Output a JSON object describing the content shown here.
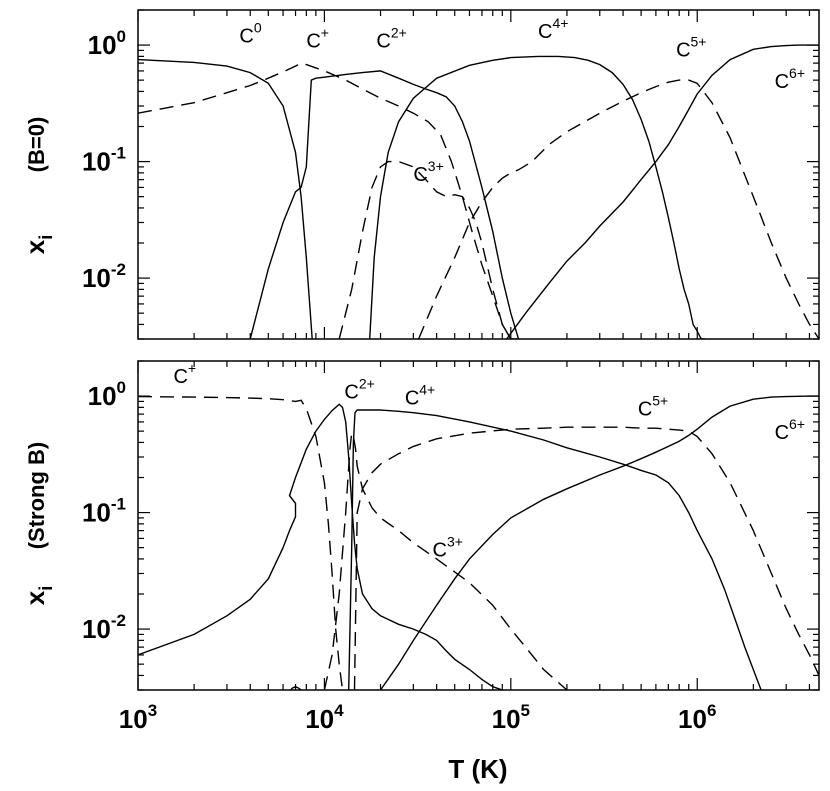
{
  "chart_data": [
    {
      "type": "line",
      "panel": "B=0",
      "ylabel": "x",
      "ylabel_sub": "i",
      "panel_label": "(B=0)",
      "xscale": "log",
      "yscale": "log",
      "xlim": [
        1000,
        4500000
      ],
      "ylim": [
        0.003,
        2
      ],
      "y_ticks": [
        {
          "base": "10",
          "exp": "0",
          "value": 1
        },
        {
          "base": "10",
          "exp": "-1",
          "value": 0.1
        },
        {
          "base": "10",
          "exp": "-2",
          "value": 0.01
        }
      ],
      "labels": [
        {
          "base": "C",
          "sup": "0",
          "x": 3500,
          "y": 1.05
        },
        {
          "base": "C",
          "sup": "+",
          "x": 8000,
          "y": 0.95
        },
        {
          "base": "C",
          "sup": "2+",
          "x": 19000,
          "y": 0.95
        },
        {
          "base": "C",
          "sup": "3+",
          "x": 30000,
          "y": 0.068
        },
        {
          "base": "C",
          "sup": "4+",
          "x": 140000,
          "y": 1.15
        },
        {
          "base": "C",
          "sup": "5+",
          "x": 770000,
          "y": 0.8
        },
        {
          "base": "C",
          "sup": "6+",
          "x": 2600000,
          "y": 0.43
        }
      ],
      "series": [
        {
          "label": "C0",
          "style": "solid",
          "x": [
            1000,
            2000,
            3000,
            4000,
            5000,
            6000,
            7000,
            7500,
            8000,
            8600
          ],
          "y": [
            0.75,
            0.71,
            0.66,
            0.58,
            0.47,
            0.3,
            0.12,
            0.05,
            0.015,
            0.003
          ]
        },
        {
          "label": "C+",
          "style": "dashed",
          "x": [
            1000,
            2000,
            3000,
            4000,
            5000,
            6000,
            7000,
            7500,
            8000,
            10000,
            13000,
            16000,
            20000,
            25000,
            30000,
            36000,
            42000,
            48000,
            55000,
            62000,
            70000,
            80000,
            90000,
            100000
          ],
          "y": [
            0.26,
            0.32,
            0.39,
            0.45,
            0.52,
            0.59,
            0.66,
            0.7,
            0.68,
            0.6,
            0.5,
            0.42,
            0.35,
            0.3,
            0.26,
            0.22,
            0.17,
            0.1,
            0.05,
            0.025,
            0.013,
            0.007,
            0.004,
            0.003
          ]
        },
        {
          "label": "C2+",
          "style": "solid",
          "x": [
            4000,
            5000,
            6000,
            7000,
            7500,
            8000,
            8500,
            9000,
            10000,
            11000,
            13000,
            16000,
            20000,
            25000,
            30000,
            35000,
            40000,
            45000,
            50000,
            55000,
            60000,
            70000,
            80000,
            90000,
            100000,
            110000
          ],
          "y": [
            0.003,
            0.012,
            0.03,
            0.055,
            0.06,
            0.09,
            0.5,
            0.52,
            0.53,
            0.54,
            0.56,
            0.58,
            0.6,
            0.52,
            0.46,
            0.42,
            0.39,
            0.36,
            0.3,
            0.22,
            0.15,
            0.06,
            0.025,
            0.01,
            0.005,
            0.003
          ]
        },
        {
          "label": "C3+",
          "style": "dashed",
          "x": [
            12000,
            14000,
            16000,
            18000,
            20000,
            22000,
            25000,
            30000,
            35000,
            40000,
            45000,
            50000,
            55000,
            60000,
            65000,
            70000,
            80000,
            90000,
            100000,
            110000
          ],
          "y": [
            0.003,
            0.008,
            0.025,
            0.06,
            0.09,
            0.1,
            0.1,
            0.09,
            0.07,
            0.055,
            0.05,
            0.052,
            0.05,
            0.04,
            0.03,
            0.02,
            0.008,
            0.004,
            0.003,
            0.003
          ]
        },
        {
          "label": "C4+",
          "style": "solid",
          "x": [
            17500,
            18500,
            20000,
            22000,
            25000,
            30000,
            40000,
            60000,
            80000,
            100000,
            140000,
            180000,
            220000,
            260000,
            300000,
            350000,
            400000,
            450000,
            500000,
            550000,
            600000,
            650000,
            700000,
            750000,
            800000,
            850000,
            900000,
            950000,
            1000000,
            1050000,
            1100000
          ],
          "y": [
            0.003,
            0.015,
            0.05,
            0.12,
            0.22,
            0.35,
            0.52,
            0.67,
            0.74,
            0.78,
            0.8,
            0.8,
            0.78,
            0.74,
            0.68,
            0.58,
            0.46,
            0.34,
            0.23,
            0.15,
            0.09,
            0.055,
            0.033,
            0.02,
            0.012,
            0.008,
            0.006,
            0.004,
            0.0035,
            0.003,
            0.003
          ]
        },
        {
          "label": "C5+",
          "style": "dashed",
          "x": [
            32000,
            40000,
            50000,
            60000,
            70000,
            80000,
            90000,
            100000,
            110000,
            130000,
            160000,
            200000,
            300000,
            400000,
            500000,
            600000,
            700000,
            800000,
            900000,
            1000000,
            1200000,
            1500000,
            2000000,
            2500000,
            3000000,
            3500000,
            4000000,
            4500000
          ],
          "y": [
            0.003,
            0.007,
            0.015,
            0.03,
            0.045,
            0.06,
            0.072,
            0.08,
            0.085,
            0.1,
            0.14,
            0.18,
            0.26,
            0.33,
            0.39,
            0.44,
            0.48,
            0.5,
            0.5,
            0.47,
            0.32,
            0.16,
            0.05,
            0.02,
            0.01,
            0.006,
            0.004,
            0.003
          ]
        },
        {
          "label": "C6+",
          "style": "solid",
          "x": [
            95000,
            120000,
            160000,
            200000,
            250000,
            300000,
            400000,
            500000,
            600000,
            700000,
            800000,
            900000,
            1000000,
            1200000,
            1500000,
            2000000,
            2500000,
            3000000,
            3500000,
            4000000,
            4500000
          ],
          "y": [
            0.003,
            0.005,
            0.009,
            0.014,
            0.02,
            0.028,
            0.045,
            0.07,
            0.1,
            0.14,
            0.2,
            0.28,
            0.38,
            0.55,
            0.75,
            0.92,
            0.97,
            0.99,
            1.0,
            1.0,
            1.0
          ]
        }
      ]
    },
    {
      "type": "line",
      "panel": "Strong B",
      "ylabel": "x",
      "ylabel_sub": "i",
      "panel_label": "(Strong B)",
      "xlabel": "T  (K)",
      "xscale": "log",
      "yscale": "log",
      "xlim": [
        1000,
        4500000
      ],
      "ylim": [
        0.003,
        2
      ],
      "x_ticks": [
        {
          "base": "10",
          "exp": "3",
          "value": 1000
        },
        {
          "base": "10",
          "exp": "4",
          "value": 10000
        },
        {
          "base": "10",
          "exp": "5",
          "value": 100000
        },
        {
          "base": "10",
          "exp": "6",
          "value": 1000000
        }
      ],
      "y_ticks": [
        {
          "base": "10",
          "exp": "0",
          "value": 1
        },
        {
          "base": "10",
          "exp": "-1",
          "value": 0.1
        },
        {
          "base": "10",
          "exp": "-2",
          "value": 0.01
        }
      ],
      "labels": [
        {
          "base": "C",
          "sup": "+",
          "x": 1550,
          "y": 1.3
        },
        {
          "base": "C",
          "sup": "2+",
          "x": 12800,
          "y": 0.95
        },
        {
          "base": "C",
          "sup": "3+",
          "x": 38000,
          "y": 0.042
        },
        {
          "base": "C",
          "sup": "4+",
          "x": 27000,
          "y": 0.85
        },
        {
          "base": "C",
          "sup": "5+",
          "x": 480000,
          "y": 0.68
        },
        {
          "base": "C",
          "sup": "6+",
          "x": 2600000,
          "y": 0.43
        }
      ],
      "series": [
        {
          "label": "C+",
          "style": "dashed",
          "x": [
            1000,
            2000,
            3000,
            4000,
            5000,
            6000,
            7000,
            7500,
            8000,
            9000,
            10000,
            10500,
            11000,
            11500,
            12000,
            12500
          ],
          "y": [
            0.99,
            0.98,
            0.97,
            0.96,
            0.95,
            0.93,
            0.9,
            0.92,
            0.78,
            0.45,
            0.18,
            0.08,
            0.03,
            0.01,
            0.005,
            0.003
          ]
        },
        {
          "label": "C0",
          "style": "solid",
          "x": [
            6500,
            6700,
            7000,
            7300,
            7500,
            7700,
            7500,
            7000,
            6800,
            6500
          ],
          "y": [
            0.0029,
            0.0031,
            0.0032,
            0.0031,
            0.003,
            0.0029,
            0.0029,
            0.0029,
            0.003,
            0.0029
          ]
        },
        {
          "label": "C2+",
          "style": "solid",
          "x": [
            1000,
            2000,
            3000,
            4000,
            5000,
            6000,
            6500,
            7000,
            7000,
            6500,
            7000,
            8000,
            9000,
            10000,
            11000,
            12000,
            12500,
            13000,
            13500,
            14000,
            14500,
            15000,
            16000,
            18000,
            20000,
            25000,
            30000,
            35000,
            40000,
            45000,
            50000,
            60000,
            70000,
            80000,
            90000
          ],
          "y": [
            0.006,
            0.009,
            0.013,
            0.018,
            0.027,
            0.05,
            0.07,
            0.092,
            0.12,
            0.14,
            0.2,
            0.35,
            0.5,
            0.63,
            0.75,
            0.85,
            0.8,
            0.6,
            0.3,
            0.12,
            0.055,
            0.033,
            0.02,
            0.015,
            0.013,
            0.011,
            0.01,
            0.009,
            0.008,
            0.0065,
            0.0055,
            0.0045,
            0.0037,
            0.0032,
            0.003
          ]
        },
        {
          "label": "C3+",
          "style": "dashed",
          "x": [
            10000,
            11000,
            12000,
            13000,
            13700,
            14000,
            14300,
            14700,
            15000,
            16000,
            18000,
            20000,
            25000,
            30000,
            40000,
            60000,
            80000,
            100000,
            120000,
            150000,
            200000
          ],
          "y": [
            0.003,
            0.006,
            0.02,
            0.1,
            0.35,
            0.48,
            0.45,
            0.35,
            0.25,
            0.16,
            0.11,
            0.09,
            0.07,
            0.055,
            0.04,
            0.025,
            0.016,
            0.01,
            0.007,
            0.0045,
            0.003
          ]
        },
        {
          "label": "C4+",
          "style": "solid",
          "x": [
            13500,
            14000,
            14300,
            14600,
            15000,
            16000,
            18000,
            20000,
            25000,
            30000,
            40000,
            60000,
            100000,
            150000,
            200000,
            300000,
            400000,
            500000,
            600000,
            700000,
            800000,
            900000,
            1000000,
            1200000,
            1400000,
            1600000,
            1800000,
            2000000,
            2200000
          ],
          "y": [
            0.003,
            0.05,
            0.4,
            0.72,
            0.76,
            0.76,
            0.76,
            0.76,
            0.74,
            0.72,
            0.68,
            0.6,
            0.5,
            0.42,
            0.36,
            0.3,
            0.26,
            0.23,
            0.21,
            0.18,
            0.14,
            0.1,
            0.07,
            0.04,
            0.022,
            0.012,
            0.007,
            0.0045,
            0.003
          ]
        },
        {
          "label": "C5+",
          "style": "dashed",
          "x": [
            14500,
            15000,
            16000,
            18000,
            20000,
            25000,
            30000,
            40000,
            60000,
            100000,
            150000,
            200000,
            300000,
            400000,
            500000,
            600000,
            700000,
            800000,
            900000,
            1000000,
            1200000,
            1500000,
            2000000,
            2500000,
            3000000,
            3500000,
            4000000,
            4500000
          ],
          "y": [
            0.003,
            0.1,
            0.16,
            0.22,
            0.26,
            0.32,
            0.37,
            0.43,
            0.48,
            0.52,
            0.53,
            0.54,
            0.54,
            0.54,
            0.53,
            0.53,
            0.52,
            0.51,
            0.5,
            0.45,
            0.32,
            0.18,
            0.07,
            0.03,
            0.015,
            0.009,
            0.006,
            0.004
          ]
        },
        {
          "label": "C6+",
          "style": "solid",
          "x": [
            20000,
            25000,
            30000,
            40000,
            50000,
            60000,
            80000,
            100000,
            150000,
            200000,
            300000,
            400000,
            500000,
            600000,
            700000,
            800000,
            900000,
            1000000,
            1200000,
            1500000,
            2000000,
            2500000,
            3000000,
            4000000,
            4500000
          ],
          "y": [
            0.003,
            0.005,
            0.008,
            0.016,
            0.027,
            0.04,
            0.065,
            0.09,
            0.13,
            0.16,
            0.21,
            0.25,
            0.29,
            0.33,
            0.37,
            0.41,
            0.46,
            0.52,
            0.66,
            0.82,
            0.94,
            0.98,
            0.99,
            1.0,
            1.0
          ]
        }
      ]
    }
  ]
}
